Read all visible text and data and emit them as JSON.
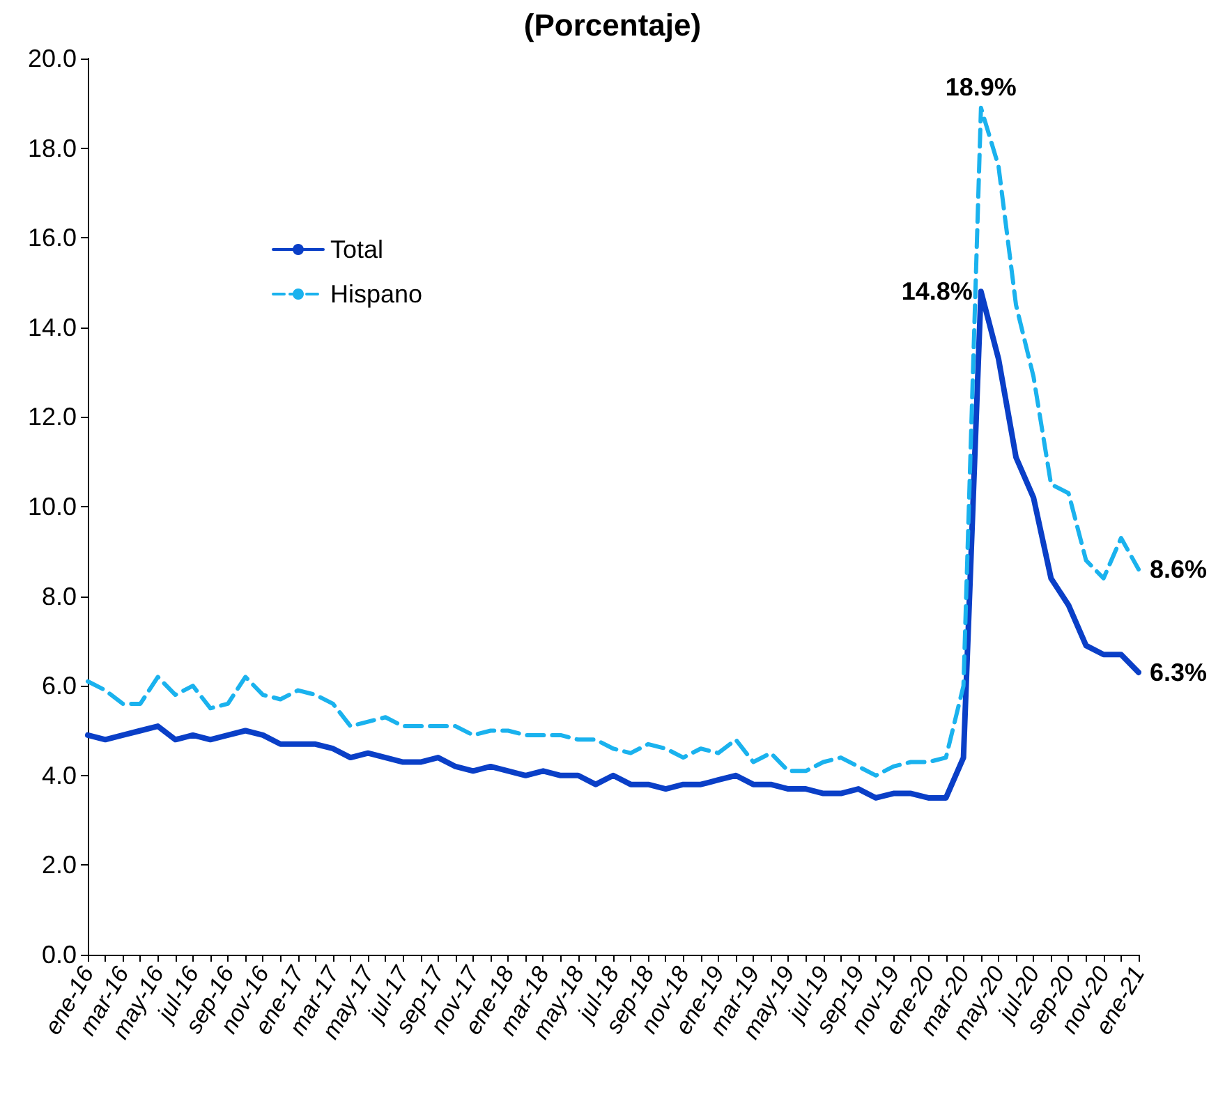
{
  "chart_data": {
    "type": "line",
    "title": "(Porcentaje)",
    "categories": [
      "ene-16",
      null,
      "mar-16",
      null,
      "may-16",
      null,
      "jul-16",
      null,
      "sep-16",
      null,
      "nov-16",
      null,
      "ene-17",
      null,
      "mar-17",
      null,
      "may-17",
      null,
      "jul-17",
      null,
      "sep-17",
      null,
      "nov-17",
      null,
      "ene-18",
      null,
      "mar-18",
      null,
      "may-18",
      null,
      "jul-18",
      null,
      "sep-18",
      null,
      "nov-18",
      null,
      "ene-19",
      null,
      "mar-19",
      null,
      "may-19",
      null,
      "jul-19",
      null,
      "sep-19",
      null,
      "nov-19",
      null,
      "ene-20",
      null,
      "mar-20",
      null,
      "may-20",
      null,
      "jul-20",
      null,
      "sep-20",
      null,
      "nov-20",
      null,
      "ene-21"
    ],
    "series": [
      {
        "name": "Total",
        "color": "#0a3fc7",
        "line_style": "solid",
        "values": [
          4.9,
          4.8,
          4.9,
          5.0,
          5.1,
          4.8,
          4.9,
          4.8,
          4.9,
          5.0,
          4.9,
          4.7,
          4.7,
          4.7,
          4.6,
          4.4,
          4.5,
          4.4,
          4.3,
          4.3,
          4.4,
          4.2,
          4.1,
          4.2,
          4.1,
          4.0,
          4.1,
          4.0,
          4.0,
          3.8,
          4.0,
          3.8,
          3.8,
          3.7,
          3.8,
          3.8,
          3.9,
          4.0,
          3.8,
          3.8,
          3.7,
          3.7,
          3.6,
          3.6,
          3.7,
          3.5,
          3.6,
          3.6,
          3.5,
          3.5,
          4.4,
          14.8,
          13.3,
          11.1,
          10.2,
          8.4,
          7.8,
          6.9,
          6.7,
          6.7,
          6.3
        ],
        "value_labels": [
          null,
          null,
          null,
          null,
          null,
          null,
          null,
          null,
          null,
          null,
          null,
          null,
          null,
          null,
          null,
          null,
          null,
          null,
          null,
          null,
          null,
          null,
          null,
          null,
          null,
          null,
          null,
          null,
          null,
          null,
          null,
          null,
          null,
          null,
          null,
          null,
          null,
          null,
          null,
          null,
          null,
          null,
          null,
          null,
          null,
          null,
          null,
          null,
          null,
          null,
          null,
          "14.8%",
          null,
          null,
          null,
          null,
          null,
          null,
          null,
          null,
          "6.3%"
        ]
      },
      {
        "name": "Hispano",
        "color": "#1ab2ee",
        "line_style": "dashed",
        "values": [
          6.1,
          5.9,
          5.6,
          5.6,
          6.2,
          5.8,
          6.0,
          5.5,
          5.6,
          6.2,
          5.8,
          5.7,
          5.9,
          5.8,
          5.6,
          5.1,
          5.2,
          5.3,
          5.1,
          5.1,
          5.1,
          5.1,
          4.9,
          5.0,
          5.0,
          4.9,
          4.9,
          4.9,
          4.8,
          4.8,
          4.6,
          4.5,
          4.7,
          4.6,
          4.4,
          4.6,
          4.5,
          4.8,
          4.3,
          4.5,
          4.1,
          4.1,
          4.3,
          4.4,
          4.2,
          4.0,
          4.2,
          4.3,
          4.3,
          4.4,
          6.0,
          18.9,
          17.6,
          14.5,
          12.9,
          10.5,
          10.3,
          8.8,
          8.4,
          9.3,
          8.6
        ],
        "value_labels": [
          null,
          null,
          null,
          null,
          null,
          null,
          null,
          null,
          null,
          null,
          null,
          null,
          null,
          null,
          null,
          null,
          null,
          null,
          null,
          null,
          null,
          null,
          null,
          null,
          null,
          null,
          null,
          null,
          null,
          null,
          null,
          null,
          null,
          null,
          null,
          null,
          null,
          null,
          null,
          null,
          null,
          null,
          null,
          null,
          null,
          null,
          null,
          null,
          null,
          null,
          null,
          "18.9%",
          null,
          null,
          null,
          null,
          null,
          null,
          null,
          null,
          "8.6%"
        ]
      }
    ],
    "ylim": [
      0,
      20
    ],
    "yticks": [
      {
        "value": 0,
        "label": "0.0"
      },
      {
        "value": 2,
        "label": "2.0"
      },
      {
        "value": 4,
        "label": "4.0"
      },
      {
        "value": 6,
        "label": "6.0"
      },
      {
        "value": 8,
        "label": "8.0"
      },
      {
        "value": 10,
        "label": "10.0"
      },
      {
        "value": 12,
        "label": "12.0"
      },
      {
        "value": 14,
        "label": "14.0"
      },
      {
        "value": 16,
        "label": "16.0"
      },
      {
        "value": 18,
        "label": "18.0"
      },
      {
        "value": 20,
        "label": "20.0"
      }
    ],
    "grid": false,
    "legend": "top left",
    "marker": "none"
  }
}
